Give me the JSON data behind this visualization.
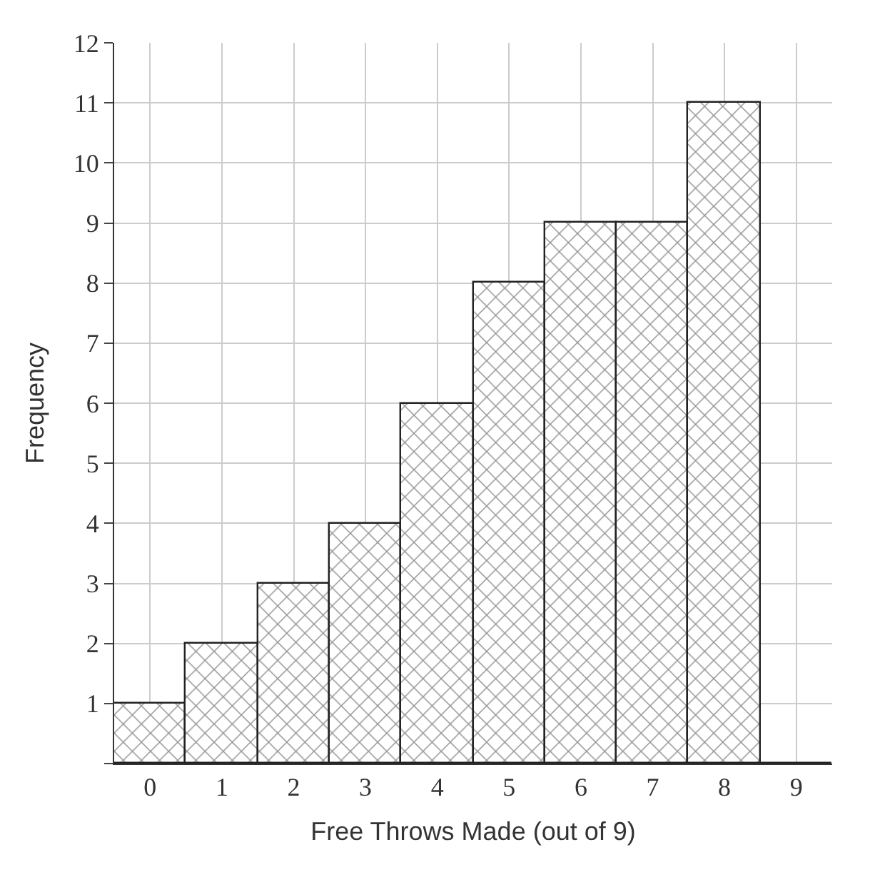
{
  "chart_data": {
    "type": "bar",
    "xlabel": "Free Throws Made (out of 9)",
    "ylabel": "Frequency",
    "categories": [
      "0",
      "1",
      "2",
      "3",
      "4",
      "5",
      "6",
      "7",
      "8",
      "9"
    ],
    "values": [
      1,
      2,
      3,
      4,
      6,
      8,
      9,
      9,
      11,
      0
    ],
    "color": "#222222",
    "ylim": [
      0,
      12
    ],
    "yticks": [
      {
        "value": 0,
        "label": null
      },
      1,
      2,
      3,
      4,
      5,
      6,
      7,
      8,
      9,
      10,
      11,
      12
    ],
    "grid": true
  }
}
